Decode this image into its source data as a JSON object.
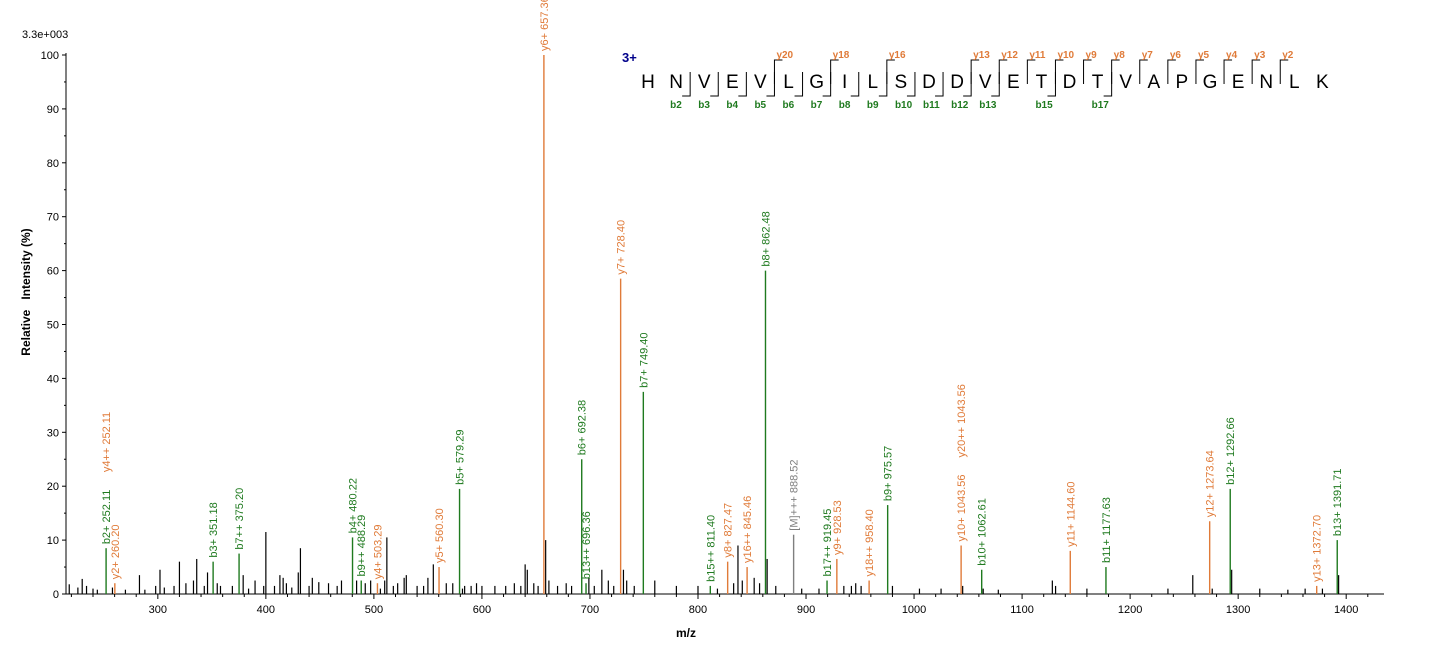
{
  "chart_data": {
    "type": "bar",
    "title": "",
    "max_intensity_label": "3.3e+003",
    "xlabel": "m/z",
    "ylabel": "Relative   Intensity (%)",
    "xlim": [
      215,
      1435
    ],
    "ylim": [
      0,
      100
    ],
    "x_ticks": [
      "300",
      "400",
      "500",
      "600",
      "700",
      "800",
      "900",
      "1000",
      "1100",
      "1200",
      "1300",
      "1400"
    ],
    "y_ticks": [
      "0",
      "10",
      "20",
      "30",
      "40",
      "50",
      "60",
      "70",
      "80",
      "90",
      "100"
    ],
    "colors": {
      "b": "#1f7a1f",
      "y": "#e07b39",
      "other": "#7f7f7f",
      "unmatched": "#000000"
    },
    "labeled_peaks": [
      {
        "x": 252.11,
        "y": 8.5,
        "label": "b2+ 252.11",
        "type": "b"
      },
      {
        "x": 252.11,
        "y": 3.0,
        "label": "y4++ 252.11",
        "type": "y",
        "label_only": true
      },
      {
        "x": 260.2,
        "y": 2.0,
        "label": "y2+ 260.20",
        "type": "y"
      },
      {
        "x": 351.18,
        "y": 6.0,
        "label": "b3+ 351.18",
        "type": "b"
      },
      {
        "x": 375.2,
        "y": 7.5,
        "label": "b7++ 375.20",
        "type": "b"
      },
      {
        "x": 480.22,
        "y": 10.5,
        "label": "b4+ 480.22",
        "type": "b"
      },
      {
        "x": 488.29,
        "y": 2.5,
        "label": "b9++ 488.29",
        "type": "b"
      },
      {
        "x": 503.29,
        "y": 2.0,
        "label": "y4+ 503.29",
        "type": "y"
      },
      {
        "x": 560.3,
        "y": 5.0,
        "label": "y5+ 560.30",
        "type": "y"
      },
      {
        "x": 579.29,
        "y": 19.5,
        "label": "b5+ 579.29",
        "type": "b"
      },
      {
        "x": 657.36,
        "y": 100,
        "label": "y6+ 657.36",
        "type": "y"
      },
      {
        "x": 692.38,
        "y": 25.0,
        "label": "b6+ 692.38",
        "type": "b"
      },
      {
        "x": 696.36,
        "y": 2.0,
        "label": "b13++ 696.36",
        "type": "b"
      },
      {
        "x": 728.4,
        "y": 58.5,
        "label": "y7+ 728.40",
        "type": "y"
      },
      {
        "x": 749.4,
        "y": 37.5,
        "label": "b7+ 749.40",
        "type": "b"
      },
      {
        "x": 811.4,
        "y": 1.5,
        "label": "b15++ 811.40",
        "type": "b"
      },
      {
        "x": 827.47,
        "y": 6.0,
        "label": "y8+ 827.47",
        "type": "y"
      },
      {
        "x": 845.46,
        "y": 5.0,
        "label": "y16++ 845.46",
        "type": "y"
      },
      {
        "x": 862.48,
        "y": 60.0,
        "label": "b8+ 862.48",
        "type": "b"
      },
      {
        "x": 888.52,
        "y": 11.0,
        "label": "[M]+++ 888.52",
        "type": "other"
      },
      {
        "x": 919.45,
        "y": 2.5,
        "label": "b17++ 919.45",
        "type": "b"
      },
      {
        "x": 928.53,
        "y": 6.5,
        "label": "y9+ 928.53",
        "type": "y"
      },
      {
        "x": 958.4,
        "y": 2.5,
        "label": "y18++ 958.40",
        "type": "y"
      },
      {
        "x": 975.57,
        "y": 16.5,
        "label": "b9+ 975.57",
        "type": "b"
      },
      {
        "x": 1043.56,
        "y": 2.0,
        "label": "y20++ 1043.56",
        "type": "y",
        "label_only": true
      },
      {
        "x": 1043.56,
        "y": 9.0,
        "label": "y10+ 1043.56",
        "type": "y"
      },
      {
        "x": 1062.61,
        "y": 4.5,
        "label": "b10+ 1062.61",
        "type": "b"
      },
      {
        "x": 1144.6,
        "y": 8.0,
        "label": "y11+ 1144.60",
        "type": "y"
      },
      {
        "x": 1177.63,
        "y": 5.0,
        "label": "b11+ 1177.63",
        "type": "b"
      },
      {
        "x": 1273.64,
        "y": 13.5,
        "label": "y12+ 1273.64",
        "type": "y"
      },
      {
        "x": 1292.66,
        "y": 19.5,
        "label": "b12+ 1292.66",
        "type": "b"
      },
      {
        "x": 1372.7,
        "y": 1.5,
        "label": "y13+ 1372.70",
        "type": "y"
      },
      {
        "x": 1391.71,
        "y": 10.0,
        "label": "b13+ 1391.71",
        "type": "b"
      }
    ],
    "unlabeled_peaks": [
      {
        "x": 218,
        "y": 1.8
      },
      {
        "x": 226,
        "y": 1.2
      },
      {
        "x": 230,
        "y": 2.8
      },
      {
        "x": 234,
        "y": 1.5
      },
      {
        "x": 240,
        "y": 1.0
      },
      {
        "x": 244,
        "y": 0.8
      },
      {
        "x": 258,
        "y": 1.2
      },
      {
        "x": 270,
        "y": 0.8
      },
      {
        "x": 283,
        "y": 3.5
      },
      {
        "x": 288,
        "y": 0.8
      },
      {
        "x": 298,
        "y": 1.5
      },
      {
        "x": 302,
        "y": 4.5
      },
      {
        "x": 306,
        "y": 1.2
      },
      {
        "x": 315,
        "y": 1.5
      },
      {
        "x": 320,
        "y": 6.0
      },
      {
        "x": 326,
        "y": 2.0
      },
      {
        "x": 333,
        "y": 2.5
      },
      {
        "x": 336,
        "y": 6.5
      },
      {
        "x": 343,
        "y": 1.5
      },
      {
        "x": 346,
        "y": 4.0
      },
      {
        "x": 355,
        "y": 2.0
      },
      {
        "x": 358,
        "y": 1.5
      },
      {
        "x": 369,
        "y": 1.5
      },
      {
        "x": 379,
        "y": 3.5
      },
      {
        "x": 384,
        "y": 1.0
      },
      {
        "x": 390,
        "y": 2.5
      },
      {
        "x": 398,
        "y": 1.5
      },
      {
        "x": 400,
        "y": 11.5
      },
      {
        "x": 408,
        "y": 1.5
      },
      {
        "x": 413,
        "y": 3.5
      },
      {
        "x": 416,
        "y": 3.0
      },
      {
        "x": 419,
        "y": 2.0
      },
      {
        "x": 424,
        "y": 1.2
      },
      {
        "x": 430,
        "y": 4.0
      },
      {
        "x": 432,
        "y": 8.5
      },
      {
        "x": 440,
        "y": 1.5
      },
      {
        "x": 443,
        "y": 3.0
      },
      {
        "x": 449,
        "y": 2.2
      },
      {
        "x": 458,
        "y": 2.0
      },
      {
        "x": 466,
        "y": 1.5
      },
      {
        "x": 470,
        "y": 2.5
      },
      {
        "x": 484,
        "y": 2.5
      },
      {
        "x": 492,
        "y": 2.0
      },
      {
        "x": 497,
        "y": 2.5
      },
      {
        "x": 506,
        "y": 1.0
      },
      {
        "x": 510,
        "y": 2.5
      },
      {
        "x": 512,
        "y": 10.5
      },
      {
        "x": 518,
        "y": 1.5
      },
      {
        "x": 522,
        "y": 2.0
      },
      {
        "x": 528,
        "y": 3.0
      },
      {
        "x": 530,
        "y": 3.5
      },
      {
        "x": 540,
        "y": 1.5
      },
      {
        "x": 546,
        "y": 1.5
      },
      {
        "x": 550,
        "y": 3.0
      },
      {
        "x": 555,
        "y": 5.5
      },
      {
        "x": 567,
        "y": 2.0
      },
      {
        "x": 573,
        "y": 2.0
      },
      {
        "x": 582,
        "y": 1.0
      },
      {
        "x": 584,
        "y": 1.5
      },
      {
        "x": 590,
        "y": 1.5
      },
      {
        "x": 595,
        "y": 2.0
      },
      {
        "x": 600,
        "y": 1.5
      },
      {
        "x": 612,
        "y": 1.5
      },
      {
        "x": 622,
        "y": 1.5
      },
      {
        "x": 630,
        "y": 2.0
      },
      {
        "x": 636,
        "y": 1.5
      },
      {
        "x": 640,
        "y": 5.5
      },
      {
        "x": 642,
        "y": 4.5
      },
      {
        "x": 648,
        "y": 2.0
      },
      {
        "x": 652,
        "y": 1.5
      },
      {
        "x": 659,
        "y": 10.0
      },
      {
        "x": 662,
        "y": 2.5
      },
      {
        "x": 670,
        "y": 1.5
      },
      {
        "x": 678,
        "y": 2.0
      },
      {
        "x": 683,
        "y": 1.5
      },
      {
        "x": 699,
        "y": 3.0
      },
      {
        "x": 704,
        "y": 1.5
      },
      {
        "x": 711,
        "y": 4.5
      },
      {
        "x": 717,
        "y": 2.5
      },
      {
        "x": 722,
        "y": 1.5
      },
      {
        "x": 731,
        "y": 4.5
      },
      {
        "x": 734,
        "y": 2.5
      },
      {
        "x": 741,
        "y": 1.5
      },
      {
        "x": 760,
        "y": 2.5
      },
      {
        "x": 780,
        "y": 1.5
      },
      {
        "x": 800,
        "y": 1.5
      },
      {
        "x": 818,
        "y": 1.0
      },
      {
        "x": 833,
        "y": 2.0
      },
      {
        "x": 837,
        "y": 9.0
      },
      {
        "x": 841,
        "y": 2.5
      },
      {
        "x": 852,
        "y": 3.0
      },
      {
        "x": 857,
        "y": 2.0
      },
      {
        "x": 864,
        "y": 6.5
      },
      {
        "x": 872,
        "y": 1.5
      },
      {
        "x": 896,
        "y": 1.0
      },
      {
        "x": 912,
        "y": 1.0
      },
      {
        "x": 935,
        "y": 1.5
      },
      {
        "x": 942,
        "y": 1.5
      },
      {
        "x": 946,
        "y": 2.0
      },
      {
        "x": 951,
        "y": 1.5
      },
      {
        "x": 980,
        "y": 1.5
      },
      {
        "x": 1005,
        "y": 1.0
      },
      {
        "x": 1025,
        "y": 1.0
      },
      {
        "x": 1045,
        "y": 1.5
      },
      {
        "x": 1064,
        "y": 1.0
      },
      {
        "x": 1078,
        "y": 0.8
      },
      {
        "x": 1128,
        "y": 2.5
      },
      {
        "x": 1131,
        "y": 1.5
      },
      {
        "x": 1160,
        "y": 1.0
      },
      {
        "x": 1235,
        "y": 1.0
      },
      {
        "x": 1258,
        "y": 3.5
      },
      {
        "x": 1276,
        "y": 1.0
      },
      {
        "x": 1294,
        "y": 4.5
      },
      {
        "x": 1320,
        "y": 1.0
      },
      {
        "x": 1346,
        "y": 0.8
      },
      {
        "x": 1362,
        "y": 1.0
      },
      {
        "x": 1378,
        "y": 1.0
      },
      {
        "x": 1393,
        "y": 3.5
      }
    ]
  },
  "peptide": {
    "charge": "3+",
    "sequence": [
      "H",
      "N",
      "V",
      "E",
      "V",
      "L",
      "G",
      "I",
      "L",
      "S",
      "D",
      "D",
      "V",
      "E",
      "T",
      "D",
      "T",
      "V",
      "A",
      "P",
      "G",
      "E",
      "N",
      "L",
      "K"
    ],
    "y_ions": [
      {
        "label": "y20",
        "after": 5
      },
      {
        "label": "y18",
        "after": 7
      },
      {
        "label": "y16",
        "after": 9
      },
      {
        "label": "y13",
        "after": 12
      },
      {
        "label": "y12",
        "after": 13
      },
      {
        "label": "y11",
        "after": 14
      },
      {
        "label": "y10",
        "after": 15
      },
      {
        "label": "y9",
        "after": 16
      },
      {
        "label": "y8",
        "after": 17
      },
      {
        "label": "y7",
        "after": 18
      },
      {
        "label": "y6",
        "after": 19
      },
      {
        "label": "y5",
        "after": 20
      },
      {
        "label": "y4",
        "after": 21
      },
      {
        "label": "y3",
        "after": 22
      },
      {
        "label": "y2",
        "after": 23
      }
    ],
    "b_ions": [
      {
        "label": "b2",
        "after": 2
      },
      {
        "label": "b3",
        "after": 3
      },
      {
        "label": "b4",
        "after": 4
      },
      {
        "label": "b5",
        "after": 5
      },
      {
        "label": "b6",
        "after": 6
      },
      {
        "label": "b7",
        "after": 7
      },
      {
        "label": "b8",
        "after": 8
      },
      {
        "label": "b9",
        "after": 9
      },
      {
        "label": "b10",
        "after": 10
      },
      {
        "label": "b11",
        "after": 11
      },
      {
        "label": "b12",
        "after": 12
      },
      {
        "label": "b13",
        "after": 13
      },
      {
        "label": "b15",
        "after": 15
      },
      {
        "label": "b17",
        "after": 17
      }
    ]
  }
}
